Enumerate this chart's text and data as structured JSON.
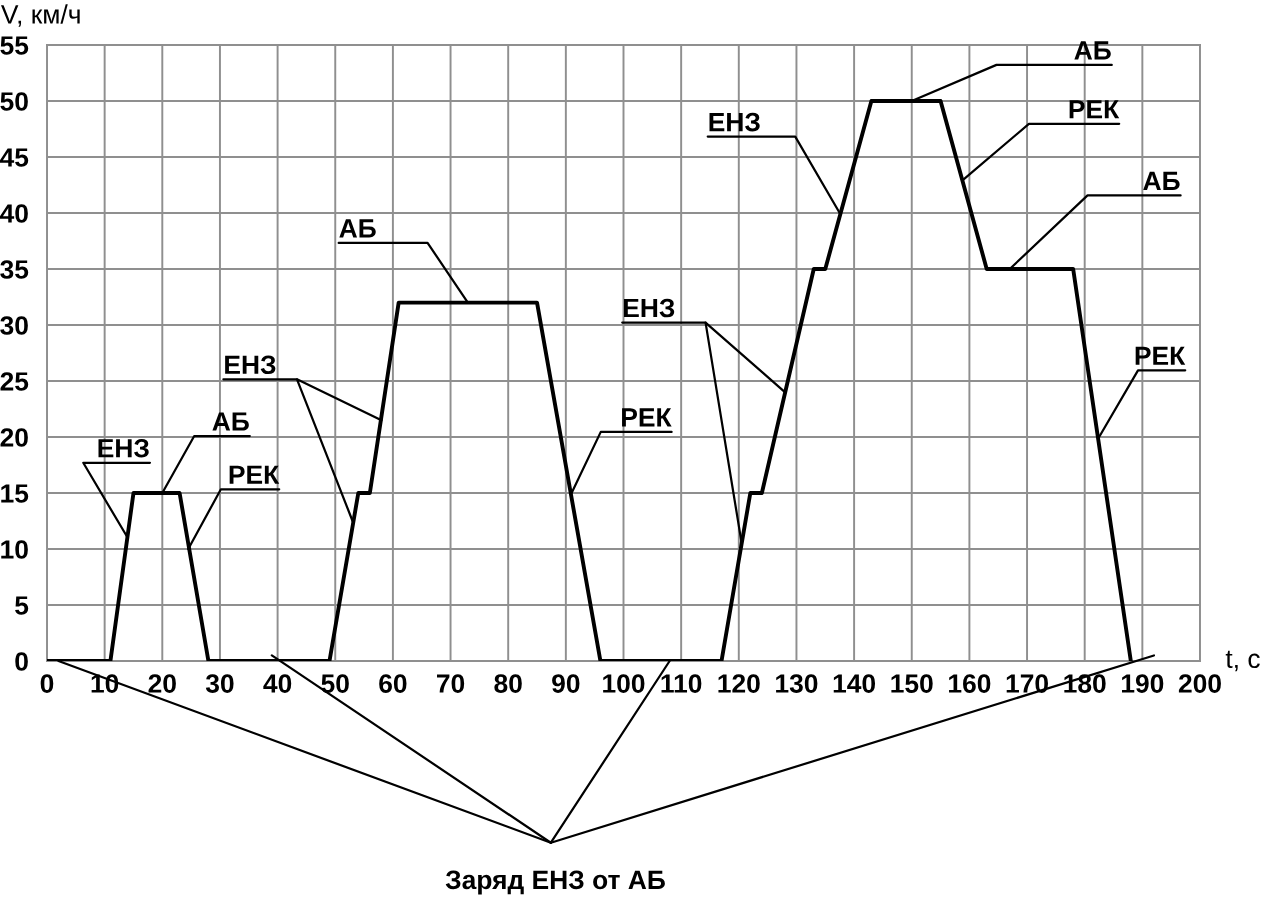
{
  "chart_data": {
    "type": "line",
    "xlabel": "t, с",
    "ylabel": "V, км/ч",
    "x": [
      0,
      11,
      15,
      23,
      28,
      49,
      54,
      56,
      61,
      85,
      96,
      117,
      122,
      124,
      133,
      135,
      143,
      155,
      163,
      178,
      188
    ],
    "series": [
      {
        "color": "#000000",
        "values": [
          0,
          0,
          15,
          15,
          0,
          0,
          15,
          15,
          32,
          32,
          0,
          0,
          15,
          15,
          35,
          35,
          50,
          50,
          35,
          35,
          0
        ]
      }
    ],
    "xlim": [
      0,
      200
    ],
    "xticks": [
      0,
      10,
      20,
      30,
      40,
      50,
      60,
      70,
      80,
      90,
      100,
      110,
      120,
      130,
      140,
      150,
      160,
      170,
      180,
      190,
      200
    ],
    "ylim": [
      0,
      55
    ],
    "yticks": [
      0,
      5,
      10,
      15,
      20,
      25,
      30,
      35,
      40,
      45,
      50,
      55
    ],
    "grid": true,
    "line_style": "solid",
    "annotations": [
      {
        "text": "ЕНЗ",
        "x": 14,
        "y": 11
      },
      {
        "text": "АБ",
        "x": 20,
        "y": 15
      },
      {
        "text": "РЕК",
        "x": 24.5,
        "y": 10
      },
      {
        "text": "ЕНЗ",
        "x": 53,
        "y": 12.5
      },
      {
        "text": "АБ",
        "x": 73,
        "y": 32
      },
      {
        "text": "РЕК",
        "x": 91,
        "y": 15
      },
      {
        "text": "ЕНЗ",
        "x": 120.5,
        "y": 10.5
      },
      {
        "text": "ЕНЗ",
        "x": 137.5,
        "y": 40
      },
      {
        "text": "АБ",
        "x": 150,
        "y": 50
      },
      {
        "text": "РЕК",
        "x": 159,
        "y": 43
      },
      {
        "text": "АБ",
        "x": 167,
        "y": 35
      },
      {
        "text": "РЕК",
        "x": 182.5,
        "y": 20
      },
      {
        "text": "Заряд ЕНЗ от АБ",
        "x": 108,
        "y": 0
      }
    ]
  }
}
